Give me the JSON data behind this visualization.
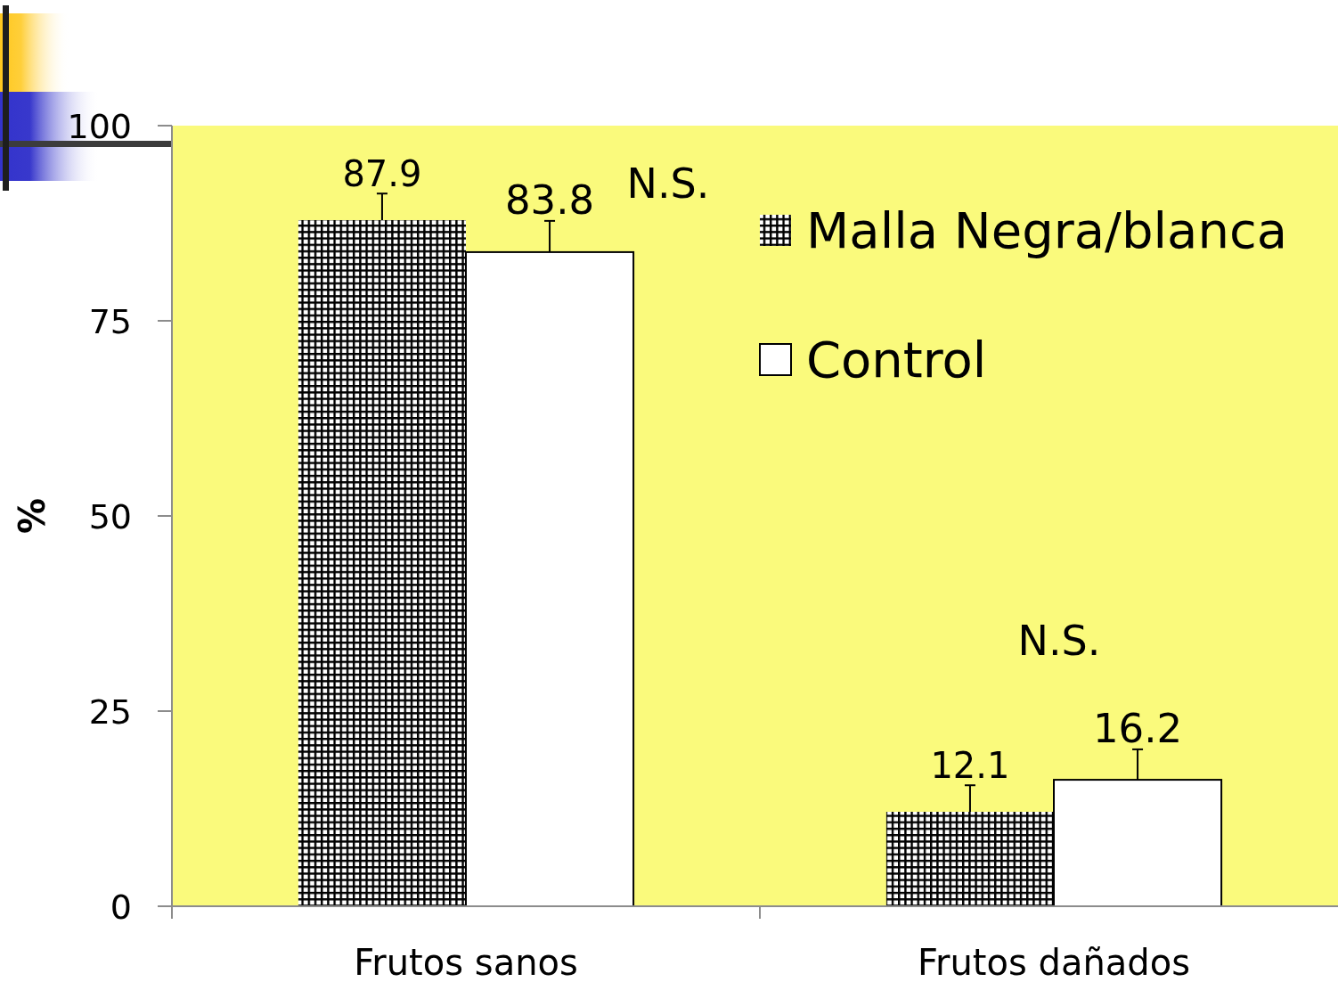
{
  "chart_data": {
    "type": "bar",
    "categories": [
      "Frutos sanos",
      "Frutos dañados"
    ],
    "series": [
      {
        "name": "Malla Negra/blanca",
        "color": "#000000",
        "values": [
          87.9,
          12.1
        ],
        "errors": [
          [
            87.9,
            91.3
          ],
          [
            12.1,
            15.5
          ]
        ]
      },
      {
        "name": "Control",
        "color": "#ffffff",
        "values": [
          83.8,
          16.2
        ],
        "errors": [
          [
            83.8,
            87.8
          ],
          [
            16.2,
            20.1
          ]
        ]
      }
    ],
    "ylabel": "%",
    "ylim": [
      0,
      100
    ],
    "yticks": [
      0,
      25,
      50,
      75,
      100
    ],
    "annotations": [
      "N.S.",
      "N.S."
    ],
    "data_labels": true,
    "legend": "top right"
  }
}
